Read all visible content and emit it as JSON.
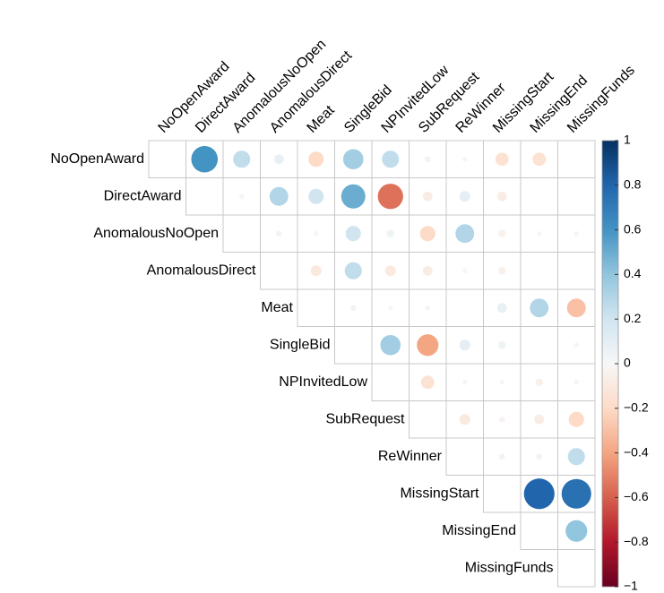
{
  "chart_data": {
    "type": "corrplot",
    "variables": [
      "NoOpenAward",
      "DirectAward",
      "AnomalousNoOpen",
      "AnomalousDirect",
      "Meat",
      "SingleBid",
      "NPInvitedLow",
      "SubRequest",
      "ReWinner",
      "MissingStart",
      "MissingEnd",
      "MissingFunds"
    ],
    "values": [
      [
        null,
        0.6,
        0.25,
        0.08,
        -0.2,
        0.35,
        0.25,
        0.03,
        -0.02,
        -0.15,
        -0.15,
        0
      ],
      [
        null,
        null,
        0.02,
        0.3,
        0.2,
        0.5,
        -0.55,
        -0.08,
        0.1,
        -0.08,
        0,
        0
      ],
      [
        null,
        null,
        null,
        0.03,
        0.02,
        0.2,
        0.05,
        -0.2,
        0.3,
        -0.05,
        0.02,
        0.02
      ],
      [
        null,
        null,
        null,
        null,
        -0.1,
        0.25,
        -0.1,
        -0.08,
        -0.02,
        -0.05,
        0,
        0
      ],
      [
        null,
        null,
        null,
        null,
        null,
        0.03,
        0.02,
        0.02,
        0,
        0.08,
        0.3,
        -0.3
      ],
      [
        null,
        null,
        null,
        null,
        null,
        null,
        0.35,
        -0.4,
        0.1,
        0.05,
        0,
        0.02
      ],
      [
        null,
        null,
        null,
        null,
        null,
        null,
        null,
        -0.15,
        0.02,
        -0.02,
        -0.05,
        0.02
      ],
      [
        null,
        null,
        null,
        null,
        null,
        null,
        null,
        null,
        -0.1,
        -0.03,
        -0.08,
        -0.2
      ],
      [
        null,
        null,
        null,
        null,
        null,
        null,
        null,
        null,
        null,
        0.03,
        0.03,
        0.25
      ],
      [
        null,
        null,
        null,
        null,
        null,
        null,
        null,
        null,
        null,
        null,
        0.8,
        0.75
      ],
      [
        null,
        null,
        null,
        null,
        null,
        null,
        null,
        null,
        null,
        null,
        null,
        0.4
      ],
      [
        null,
        null,
        null,
        null,
        null,
        null,
        null,
        null,
        null,
        null,
        null,
        null
      ]
    ],
    "clim": [
      -1,
      1
    ],
    "colorscale": [
      "#67001F",
      "#B2182B",
      "#D6604D",
      "#F4A582",
      "#FDDBC7",
      "#F7F7F7",
      "#D1E5F0",
      "#92C5DE",
      "#4393C3",
      "#2166AC",
      "#053061"
    ],
    "cticks": [
      1,
      0.8,
      0.6,
      0.4,
      0.2,
      0,
      {
        "value": -0.2,
        "label": "−0.2"
      },
      {
        "value": -0.4,
        "label": "−0.4"
      },
      {
        "value": -0.6,
        "label": "−0.6"
      },
      {
        "value": -0.8,
        "label": "−0.8"
      },
      {
        "value": -1,
        "label": "−1"
      }
    ]
  }
}
